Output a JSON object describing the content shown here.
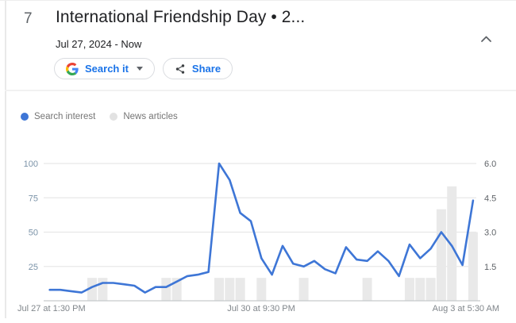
{
  "card": {
    "rank": "7",
    "title": "International Friendship Day • 2...",
    "date_range": "Jul 27, 2024 - Now",
    "search_button_label": "Search it",
    "share_button_label": "Share",
    "collapse_icon": "chevron-up"
  },
  "legend": [
    {
      "label": "Search interest",
      "color": "#3e76d6"
    },
    {
      "label": "News articles",
      "color": "#e2e2e2"
    }
  ],
  "colors": {
    "line": "#3e76d6",
    "bar": "#e9e9e9",
    "gridline": "#e8e8e8",
    "axis_line": "#c6c9cc",
    "left_tick_text": "#7b93a8",
    "right_tick_text": "#5f6368",
    "x_label_text": "#80868b",
    "button_text": "#1a73e8"
  },
  "chart_data": {
    "type": "line",
    "title": "Search interest vs News articles over time",
    "x_axis_labels": [
      "Jul 27 at 1:30 PM",
      "Jul 30 at 9:30 PM",
      "Aug 3 at 5:30 AM"
    ],
    "left_axis": {
      "label": "Search interest",
      "ticks": [
        100,
        75,
        50,
        25
      ],
      "range": [
        0,
        100
      ]
    },
    "right_axis": {
      "label": "News articles",
      "ticks": [
        "6.0",
        "4.5",
        "3.0",
        "1.5"
      ],
      "tick_values": [
        6.0,
        4.5,
        3.0,
        1.5
      ],
      "range": [
        0,
        6
      ]
    },
    "grid": true,
    "legend_position": "top-left",
    "series": [
      {
        "name": "Search interest",
        "type": "line",
        "axis": "left",
        "color": "#3e76d6",
        "values": [
          8,
          8,
          7,
          6,
          10,
          13,
          13,
          12,
          11,
          6,
          10,
          10,
          14,
          18,
          19,
          21,
          100,
          88,
          64,
          58,
          31,
          19,
          40,
          27,
          25,
          29,
          23,
          20,
          39,
          30,
          29,
          36,
          29,
          18,
          41,
          31,
          38,
          50,
          40,
          26,
          73
        ]
      },
      {
        "name": "News articles",
        "type": "bar",
        "axis": "right",
        "color": "#e9e9e9",
        "values": [
          0,
          0,
          0,
          0,
          1,
          1,
          0,
          0,
          0,
          0,
          0,
          1,
          1,
          0,
          0,
          0,
          1,
          1,
          1,
          0,
          1,
          0,
          0,
          0,
          1,
          0,
          0,
          0,
          0,
          0,
          1,
          0,
          0,
          0,
          1,
          1,
          1,
          4,
          5,
          0,
          3
        ]
      }
    ]
  }
}
